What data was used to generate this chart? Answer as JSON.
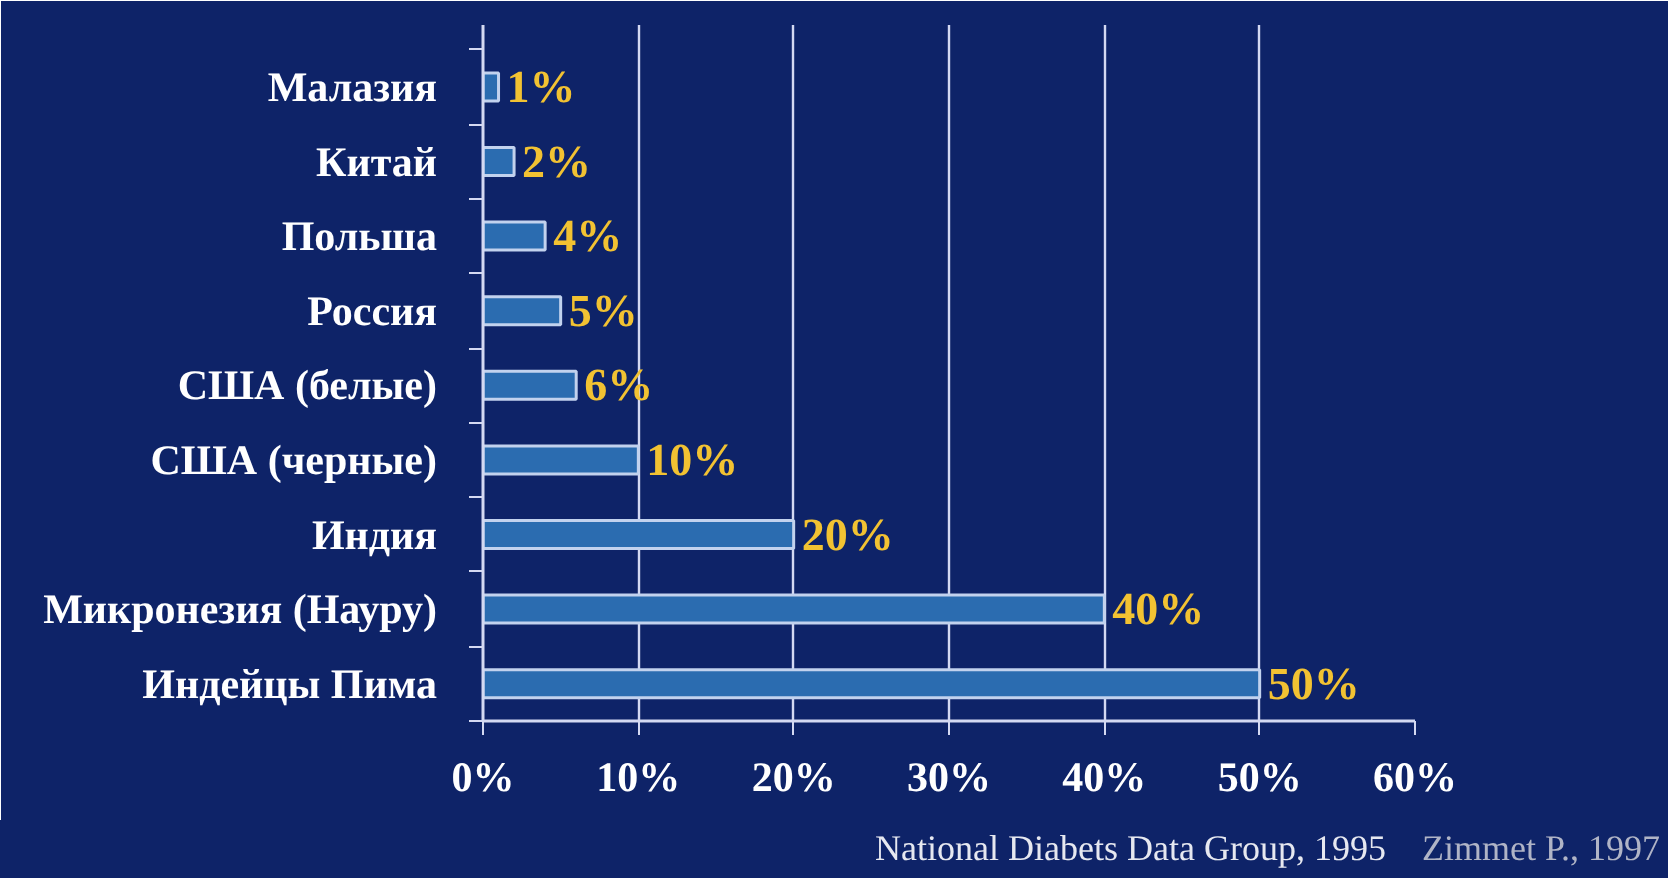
{
  "chart_data": {
    "type": "bar",
    "orientation": "horizontal",
    "categories": [
      "Малазия",
      "Китай",
      "Польша",
      "Россия",
      "США (белые)",
      "США (черные)",
      "Индия",
      "Микронезия (Науру)",
      "Индейцы Пима"
    ],
    "values": [
      1,
      2,
      4,
      5,
      6,
      10,
      20,
      40,
      50
    ],
    "color": "#2b6cb0",
    "value_labels": [
      "1%",
      "2%",
      "4%",
      "5%",
      "6%",
      "10%",
      "20%",
      "40%",
      "50%"
    ],
    "xlim": [
      0,
      60
    ],
    "xticks": [
      {
        "value": 0,
        "label": "0%"
      },
      {
        "value": 10,
        "label": "10%"
      },
      {
        "value": 20,
        "label": "20%"
      },
      {
        "value": 30,
        "label": "30%"
      },
      {
        "value": 40,
        "label": "40%"
      },
      {
        "value": 50,
        "label": "50%"
      },
      {
        "value": 60,
        "label": "60%"
      }
    ],
    "grid": "x",
    "annotations": [
      "National Diabets Data Group, 1995",
      "Zimmet P., 1997"
    ]
  }
}
